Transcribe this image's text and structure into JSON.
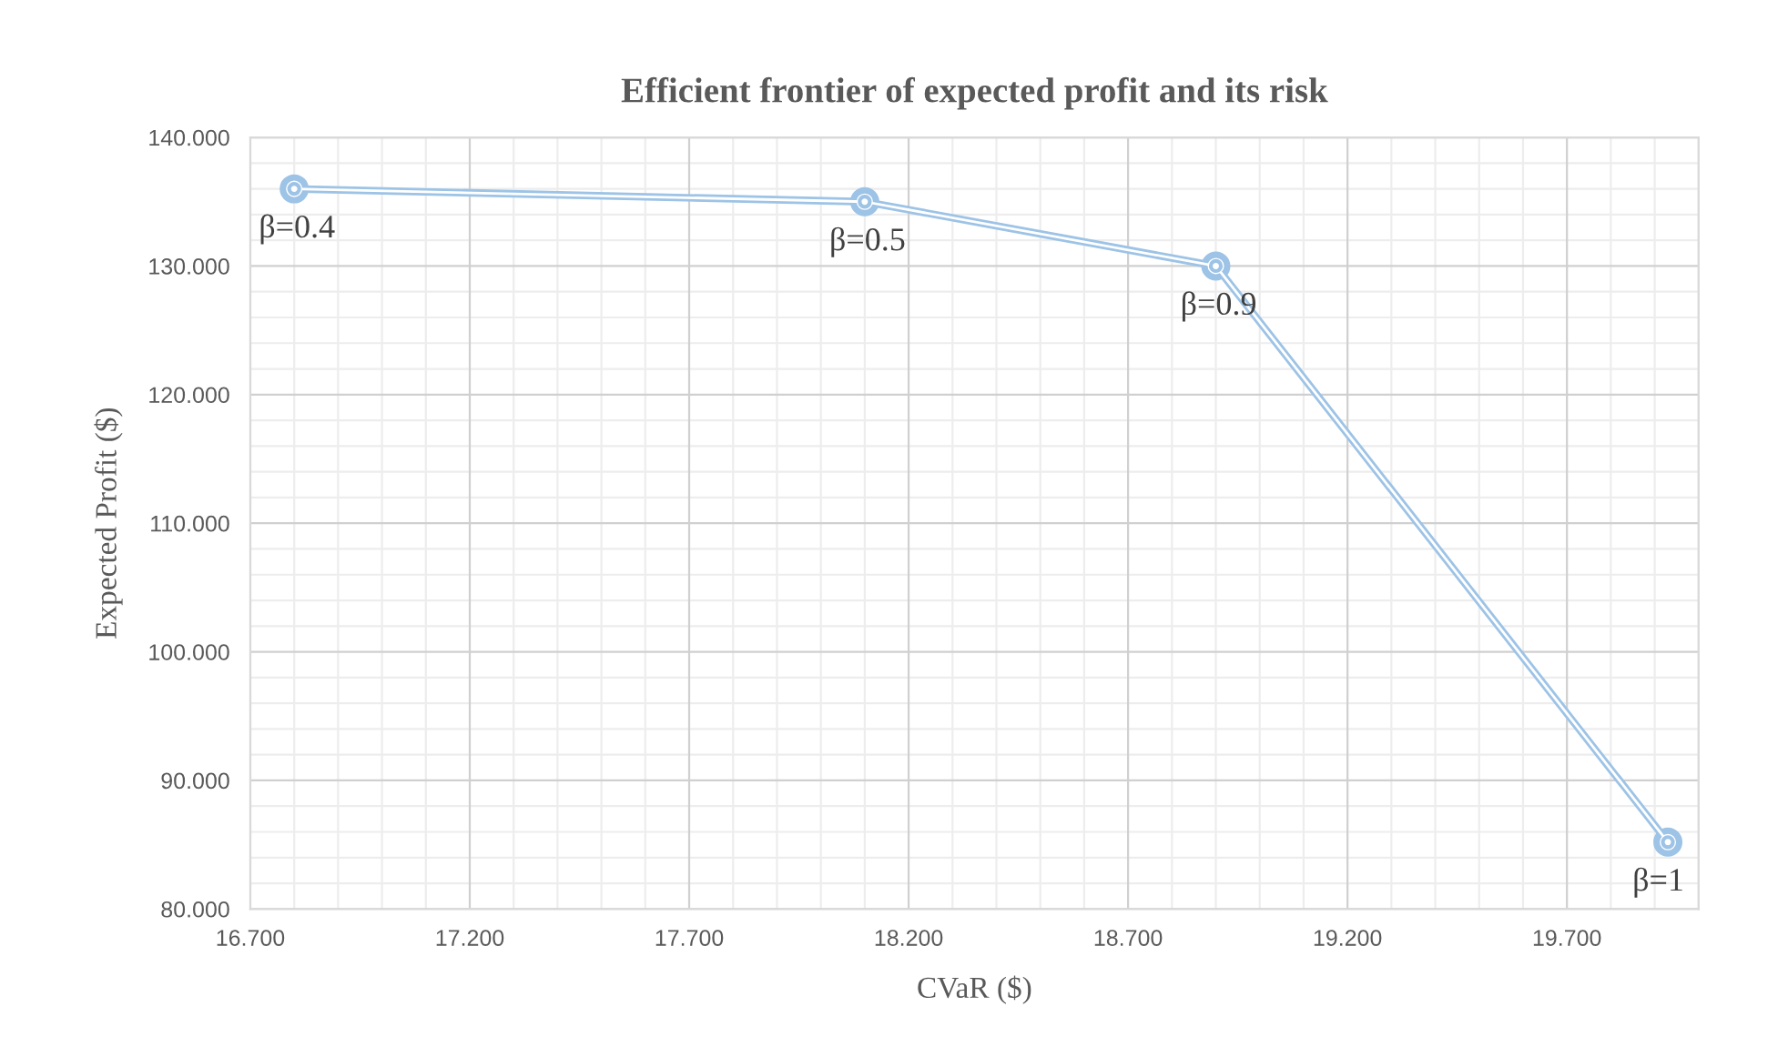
{
  "chart_data": {
    "type": "line",
    "title": "Efficient frontier of expected profit and its risk",
    "xlabel": "CVaR ($)",
    "ylabel": "Expected Profit ($)",
    "x": [
      16.8,
      18.1,
      18.9,
      19.93
    ],
    "series": [
      {
        "color": "#9dc3e6",
        "values": [
          136.0,
          135.0,
          130.0,
          85.2
        ]
      }
    ],
    "marker": "circle",
    "line_style": "solid",
    "grid": true,
    "xlim": [
      16.7,
      20.0
    ],
    "ylim": [
      80,
      140
    ],
    "xticks": [
      {
        "value": 16.7,
        "label": "16.700"
      },
      {
        "value": 16.8,
        "label": null
      },
      {
        "value": 16.9,
        "label": null
      },
      {
        "value": 17.0,
        "label": null
      },
      {
        "value": 17.1,
        "label": null
      },
      {
        "value": 17.2,
        "label": "17.200"
      },
      {
        "value": 17.3,
        "label": null
      },
      {
        "value": 17.4,
        "label": null
      },
      {
        "value": 17.5,
        "label": null
      },
      {
        "value": 17.6,
        "label": null
      },
      {
        "value": 17.7,
        "label": "17.700"
      },
      {
        "value": 17.8,
        "label": null
      },
      {
        "value": 17.9,
        "label": null
      },
      {
        "value": 18.0,
        "label": null
      },
      {
        "value": 18.1,
        "label": null
      },
      {
        "value": 18.2,
        "label": "18.200"
      },
      {
        "value": 18.3,
        "label": null
      },
      {
        "value": 18.4,
        "label": null
      },
      {
        "value": 18.5,
        "label": null
      },
      {
        "value": 18.6,
        "label": null
      },
      {
        "value": 18.7,
        "label": "18.700"
      },
      {
        "value": 18.8,
        "label": null
      },
      {
        "value": 18.9,
        "label": null
      },
      {
        "value": 19.0,
        "label": null
      },
      {
        "value": 19.1,
        "label": null
      },
      {
        "value": 19.2,
        "label": "19.200"
      },
      {
        "value": 19.3,
        "label": null
      },
      {
        "value": 19.4,
        "label": null
      },
      {
        "value": 19.5,
        "label": null
      },
      {
        "value": 19.6,
        "label": null
      },
      {
        "value": 19.7,
        "label": "19.700"
      },
      {
        "value": 19.8,
        "label": null
      },
      {
        "value": 19.9,
        "label": null
      },
      {
        "value": 20.0,
        "label": null
      }
    ],
    "yticks": [
      {
        "value": 80,
        "label": "80.000"
      },
      {
        "value": 82,
        "label": null
      },
      {
        "value": 84,
        "label": null
      },
      {
        "value": 86,
        "label": null
      },
      {
        "value": 88,
        "label": null
      },
      {
        "value": 90,
        "label": "90.000"
      },
      {
        "value": 92,
        "label": null
      },
      {
        "value": 94,
        "label": null
      },
      {
        "value": 96,
        "label": null
      },
      {
        "value": 98,
        "label": null
      },
      {
        "value": 100,
        "label": "100.000"
      },
      {
        "value": 102,
        "label": null
      },
      {
        "value": 104,
        "label": null
      },
      {
        "value": 106,
        "label": null
      },
      {
        "value": 108,
        "label": null
      },
      {
        "value": 110,
        "label": "110.000"
      },
      {
        "value": 112,
        "label": null
      },
      {
        "value": 114,
        "label": null
      },
      {
        "value": 116,
        "label": null
      },
      {
        "value": 118,
        "label": null
      },
      {
        "value": 120,
        "label": "120.000"
      },
      {
        "value": 122,
        "label": null
      },
      {
        "value": 124,
        "label": null
      },
      {
        "value": 126,
        "label": null
      },
      {
        "value": 128,
        "label": null
      },
      {
        "value": 130,
        "label": "130.000"
      },
      {
        "value": 132,
        "label": null
      },
      {
        "value": 134,
        "label": null
      },
      {
        "value": 136,
        "label": null
      },
      {
        "value": 138,
        "label": null
      },
      {
        "value": 140,
        "label": "140.000"
      }
    ],
    "annotations": [
      {
        "text": "β=0.4",
        "x": 16.8,
        "y": 136.0
      },
      {
        "text": "β=0.5",
        "x": 18.1,
        "y": 135.0
      },
      {
        "text": "β=0.9",
        "x": 18.9,
        "y": 130.0
      },
      {
        "text": "β=1",
        "x": 19.93,
        "y": 85.2
      }
    ]
  }
}
